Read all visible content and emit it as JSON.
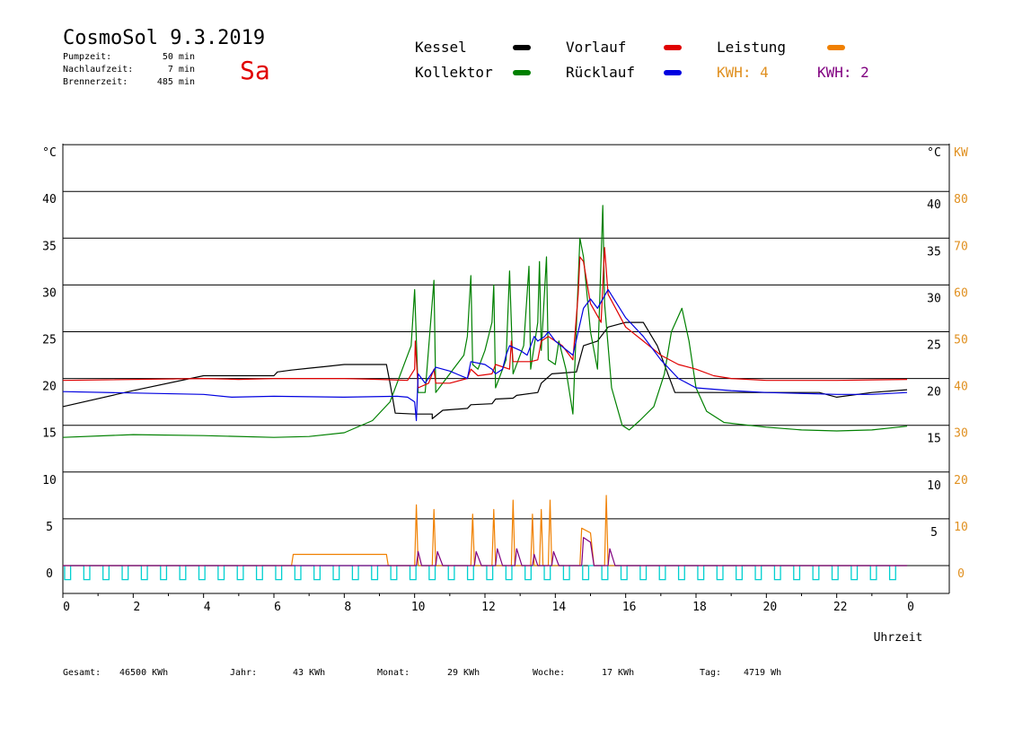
{
  "header": {
    "title": "CosmoSol 9.3.2019",
    "day": "Sa",
    "stats": [
      {
        "label": "Pumpzeit:",
        "value": "50 min"
      },
      {
        "label": "Nachlaufzeit:",
        "value": "7 min"
      },
      {
        "label": "Brennerzeit:",
        "value": "485 min"
      }
    ]
  },
  "legend": {
    "kessel": "Kessel",
    "kollektor": "Kollektor",
    "vorlauf": "Vorlauf",
    "ruecklauf": "Rücklauf",
    "leistung": "Leistung",
    "kwh1": "KWH: 4",
    "kwh2": "KWH: 2"
  },
  "colors": {
    "kessel": "#000000",
    "kollektor": "#008000",
    "vorlauf": "#e00000",
    "ruecklauf": "#0000e0",
    "leistung": "#f08000",
    "kwh1": "#e09020",
    "kwh2": "#800080",
    "pump": "#00d0d0"
  },
  "footer": [
    {
      "label": "Gesamt:",
      "value": "46500 KWh"
    },
    {
      "label": "Jahr:",
      "value": "43 KWh"
    },
    {
      "label": "Monat:",
      "value": "29 KWh"
    },
    {
      "label": "Woche:",
      "value": "17 KWh"
    },
    {
      "label": "Tag:",
      "value": "4719 Wh"
    }
  ],
  "chart_data": {
    "type": "line",
    "xlabel": "Uhrzeit",
    "ylabel_left": "°C",
    "ylabel_right_temp": "°C",
    "ylabel_right_power": "KW",
    "xlim": [
      0,
      24
    ],
    "ylim": [
      0,
      45
    ],
    "y2lim": [
      0,
      90
    ],
    "x_ticks": [
      "0",
      "2",
      "4",
      "6",
      "8",
      "10",
      "12",
      "14",
      "16",
      "18",
      "20",
      "22",
      "0"
    ],
    "y_ticks_left": [
      "0",
      "5",
      "10",
      "15",
      "20",
      "25",
      "30",
      "35",
      "40"
    ],
    "y_ticks_right_temp": [
      "5",
      "10",
      "15",
      "20",
      "25",
      "30",
      "35",
      "40"
    ],
    "y_ticks_right_power": [
      "0",
      "10",
      "20",
      "30",
      "40",
      "50",
      "60",
      "70",
      "80"
    ],
    "grid": true,
    "series": [
      {
        "name": "Kessel",
        "color": "#000000",
        "points": [
          [
            0,
            17.0
          ],
          [
            2,
            18.7
          ],
          [
            4,
            20.3
          ],
          [
            5,
            20.3
          ],
          [
            6,
            20.3
          ],
          [
            6.1,
            20.7
          ],
          [
            6.5,
            20.9
          ],
          [
            7,
            21.1
          ],
          [
            7.5,
            21.3
          ],
          [
            8,
            21.5
          ],
          [
            9.2,
            21.5
          ],
          [
            9.3,
            19.5
          ],
          [
            9.45,
            16.3
          ],
          [
            10,
            16.2
          ],
          [
            10.5,
            16.2
          ],
          [
            10.5,
            15.7
          ],
          [
            10.8,
            16.6
          ],
          [
            11.5,
            16.8
          ],
          [
            11.6,
            17.2
          ],
          [
            12.2,
            17.3
          ],
          [
            12.3,
            17.8
          ],
          [
            12.8,
            17.9
          ],
          [
            12.9,
            18.2
          ],
          [
            13.5,
            18.5
          ],
          [
            13.6,
            19.5
          ],
          [
            13.9,
            20.5
          ],
          [
            14.6,
            20.7
          ],
          [
            14.8,
            23.5
          ],
          [
            15.2,
            24.0
          ],
          [
            15.5,
            25.5
          ],
          [
            16,
            26.0
          ],
          [
            16.5,
            26.0
          ],
          [
            16.9,
            23.5
          ],
          [
            17.4,
            18.5
          ],
          [
            18,
            18.5
          ],
          [
            20,
            18.5
          ],
          [
            21.5,
            18.5
          ],
          [
            22,
            18.0
          ],
          [
            23,
            18.5
          ],
          [
            24,
            18.8
          ]
        ]
      },
      {
        "name": "Kollektor",
        "color": "#008000",
        "points": [
          [
            0,
            13.7
          ],
          [
            2,
            14.0
          ],
          [
            4,
            13.9
          ],
          [
            6,
            13.7
          ],
          [
            7,
            13.8
          ],
          [
            8,
            14.2
          ],
          [
            8.8,
            15.5
          ],
          [
            9.3,
            17.5
          ],
          [
            9.6,
            20.5
          ],
          [
            9.9,
            23.5
          ],
          [
            10,
            29.5
          ],
          [
            10.1,
            18.5
          ],
          [
            10.3,
            18.5
          ],
          [
            10.55,
            30.5
          ],
          [
            10.6,
            18.5
          ],
          [
            10.9,
            20.0
          ],
          [
            11.4,
            22.5
          ],
          [
            11.5,
            24.5
          ],
          [
            11.6,
            31.0
          ],
          [
            11.65,
            21.5
          ],
          [
            11.8,
            21.0
          ],
          [
            12.0,
            23.0
          ],
          [
            12.2,
            26.0
          ],
          [
            12.25,
            30.0
          ],
          [
            12.3,
            19.0
          ],
          [
            12.6,
            22.0
          ],
          [
            12.7,
            31.5
          ],
          [
            12.8,
            20.5
          ],
          [
            13.1,
            23.5
          ],
          [
            13.25,
            32.0
          ],
          [
            13.3,
            21.0
          ],
          [
            13.5,
            26.0
          ],
          [
            13.55,
            32.5
          ],
          [
            13.6,
            23.0
          ],
          [
            13.75,
            33.0
          ],
          [
            13.8,
            22.0
          ],
          [
            14.0,
            21.5
          ],
          [
            14.1,
            24.0
          ],
          [
            14.3,
            21.0
          ],
          [
            14.5,
            16.2
          ],
          [
            14.7,
            35.0
          ],
          [
            14.8,
            33.0
          ],
          [
            15.0,
            25.0
          ],
          [
            15.2,
            21.0
          ],
          [
            15.35,
            38.5
          ],
          [
            15.4,
            28.0
          ],
          [
            15.6,
            19.0
          ],
          [
            15.9,
            15.0
          ],
          [
            16.1,
            14.5
          ],
          [
            16.4,
            15.5
          ],
          [
            16.8,
            17.0
          ],
          [
            17.1,
            20.5
          ],
          [
            17.3,
            25.0
          ],
          [
            17.6,
            27.5
          ],
          [
            17.8,
            24.0
          ],
          [
            18.0,
            19.0
          ],
          [
            18.3,
            16.5
          ],
          [
            18.8,
            15.3
          ],
          [
            19.5,
            15.0
          ],
          [
            20,
            14.8
          ],
          [
            21,
            14.5
          ],
          [
            22,
            14.4
          ],
          [
            23,
            14.5
          ],
          [
            23.5,
            14.7
          ],
          [
            24,
            14.9
          ]
        ]
      },
      {
        "name": "Vorlauf",
        "color": "#e00000",
        "points": [
          [
            0,
            19.8
          ],
          [
            4,
            20.0
          ],
          [
            5,
            19.9
          ],
          [
            6,
            20.0
          ],
          [
            8,
            20.0
          ],
          [
            9,
            19.9
          ],
          [
            9.8,
            19.8
          ],
          [
            10,
            21.0
          ],
          [
            10.02,
            24.0
          ],
          [
            10.1,
            19.0
          ],
          [
            10.4,
            19.5
          ],
          [
            10.55,
            21.0
          ],
          [
            10.6,
            19.5
          ],
          [
            11,
            19.5
          ],
          [
            11.5,
            20.0
          ],
          [
            11.6,
            21.0
          ],
          [
            11.8,
            20.3
          ],
          [
            12.2,
            20.5
          ],
          [
            12.3,
            21.5
          ],
          [
            12.7,
            21.0
          ],
          [
            12.75,
            24.0
          ],
          [
            12.8,
            21.8
          ],
          [
            13.3,
            21.8
          ],
          [
            13.5,
            22.0
          ],
          [
            13.6,
            24.0
          ],
          [
            13.8,
            24.5
          ],
          [
            14.2,
            23.5
          ],
          [
            14.5,
            22.0
          ],
          [
            14.65,
            29.0
          ],
          [
            14.7,
            33.0
          ],
          [
            14.8,
            32.5
          ],
          [
            15.0,
            28.0
          ],
          [
            15.3,
            26.0
          ],
          [
            15.4,
            34.0
          ],
          [
            15.5,
            29.0
          ],
          [
            16,
            25.5
          ],
          [
            16.5,
            24.0
          ],
          [
            17,
            22.5
          ],
          [
            17.5,
            21.5
          ],
          [
            18,
            21.0
          ],
          [
            18.5,
            20.3
          ],
          [
            19,
            20.0
          ],
          [
            20,
            19.8
          ],
          [
            22,
            19.8
          ],
          [
            24,
            19.9
          ]
        ]
      },
      {
        "name": "Rücklauf",
        "color": "#0000e0",
        "points": [
          [
            0,
            18.6
          ],
          [
            4,
            18.3
          ],
          [
            4.8,
            18.0
          ],
          [
            6,
            18.1
          ],
          [
            8,
            18.0
          ],
          [
            9.5,
            18.1
          ],
          [
            9.8,
            18.0
          ],
          [
            10.0,
            17.5
          ],
          [
            10.05,
            15.5
          ],
          [
            10.1,
            20.5
          ],
          [
            10.3,
            19.5
          ],
          [
            10.6,
            21.2
          ],
          [
            11,
            20.8
          ],
          [
            11.5,
            20.0
          ],
          [
            11.6,
            21.8
          ],
          [
            12.0,
            21.5
          ],
          [
            12.2,
            21.0
          ],
          [
            12.3,
            20.5
          ],
          [
            12.5,
            21.0
          ],
          [
            12.6,
            22.5
          ],
          [
            12.7,
            23.5
          ],
          [
            13.0,
            23.0
          ],
          [
            13.2,
            22.5
          ],
          [
            13.4,
            24.5
          ],
          [
            13.5,
            24.0
          ],
          [
            13.7,
            24.5
          ],
          [
            13.8,
            25.0
          ],
          [
            14.0,
            24.0
          ],
          [
            14.5,
            22.5
          ],
          [
            14.8,
            27.5
          ],
          [
            15.0,
            28.5
          ],
          [
            15.2,
            27.5
          ],
          [
            15.5,
            29.5
          ],
          [
            16,
            26.5
          ],
          [
            16.5,
            24.5
          ],
          [
            17,
            22.0
          ],
          [
            17.5,
            20.0
          ],
          [
            18,
            19.0
          ],
          [
            19,
            18.7
          ],
          [
            20,
            18.5
          ],
          [
            22,
            18.3
          ],
          [
            23,
            18.3
          ],
          [
            24,
            18.5
          ]
        ]
      },
      {
        "name": "Leistung",
        "color": "#f08000",
        "points": [
          [
            0,
            0
          ],
          [
            6.5,
            0
          ],
          [
            6.55,
            1.2
          ],
          [
            9.2,
            1.2
          ],
          [
            9.25,
            0
          ],
          [
            10.0,
            0
          ],
          [
            10.05,
            6.5
          ],
          [
            10.1,
            0
          ],
          [
            10.5,
            0
          ],
          [
            10.55,
            6
          ],
          [
            10.6,
            0
          ],
          [
            11.6,
            0
          ],
          [
            11.65,
            5.5
          ],
          [
            11.7,
            0
          ],
          [
            12.2,
            0
          ],
          [
            12.25,
            6
          ],
          [
            12.3,
            0
          ],
          [
            12.75,
            0
          ],
          [
            12.8,
            7
          ],
          [
            12.85,
            0
          ],
          [
            13.3,
            0
          ],
          [
            13.35,
            5.5
          ],
          [
            13.4,
            0
          ],
          [
            13.55,
            0
          ],
          [
            13.6,
            6
          ],
          [
            13.65,
            0
          ],
          [
            13.8,
            0
          ],
          [
            13.85,
            7
          ],
          [
            13.9,
            0
          ],
          [
            14.7,
            0
          ],
          [
            14.75,
            4
          ],
          [
            15.0,
            3.5
          ],
          [
            15.1,
            0
          ],
          [
            15.4,
            0
          ],
          [
            15.45,
            7.5
          ],
          [
            15.5,
            0
          ],
          [
            24,
            0
          ]
        ]
      },
      {
        "name": "KWH: 2",
        "color": "#800080",
        "points": [
          [
            0,
            0
          ],
          [
            10.05,
            0
          ],
          [
            10.1,
            1.5
          ],
          [
            10.2,
            0
          ],
          [
            10.6,
            0
          ],
          [
            10.65,
            1.5
          ],
          [
            10.8,
            0
          ],
          [
            11.7,
            0
          ],
          [
            11.75,
            1.5
          ],
          [
            11.9,
            0
          ],
          [
            12.3,
            0
          ],
          [
            12.35,
            1.8
          ],
          [
            12.5,
            0
          ],
          [
            12.85,
            0
          ],
          [
            12.9,
            1.8
          ],
          [
            13.05,
            0
          ],
          [
            13.35,
            0
          ],
          [
            13.4,
            1.2
          ],
          [
            13.5,
            0
          ],
          [
            13.9,
            0
          ],
          [
            13.95,
            1.5
          ],
          [
            14.1,
            0
          ],
          [
            14.75,
            0
          ],
          [
            14.8,
            3
          ],
          [
            15.0,
            2.5
          ],
          [
            15.1,
            0
          ],
          [
            15.5,
            0
          ],
          [
            15.55,
            1.8
          ],
          [
            15.7,
            0
          ],
          [
            24,
            0
          ]
        ]
      }
    ],
    "pump_signal": {
      "name": "Pumpe",
      "color": "#00d0d0",
      "low": -1.5,
      "high": 0,
      "pulse_count": 44
    }
  }
}
